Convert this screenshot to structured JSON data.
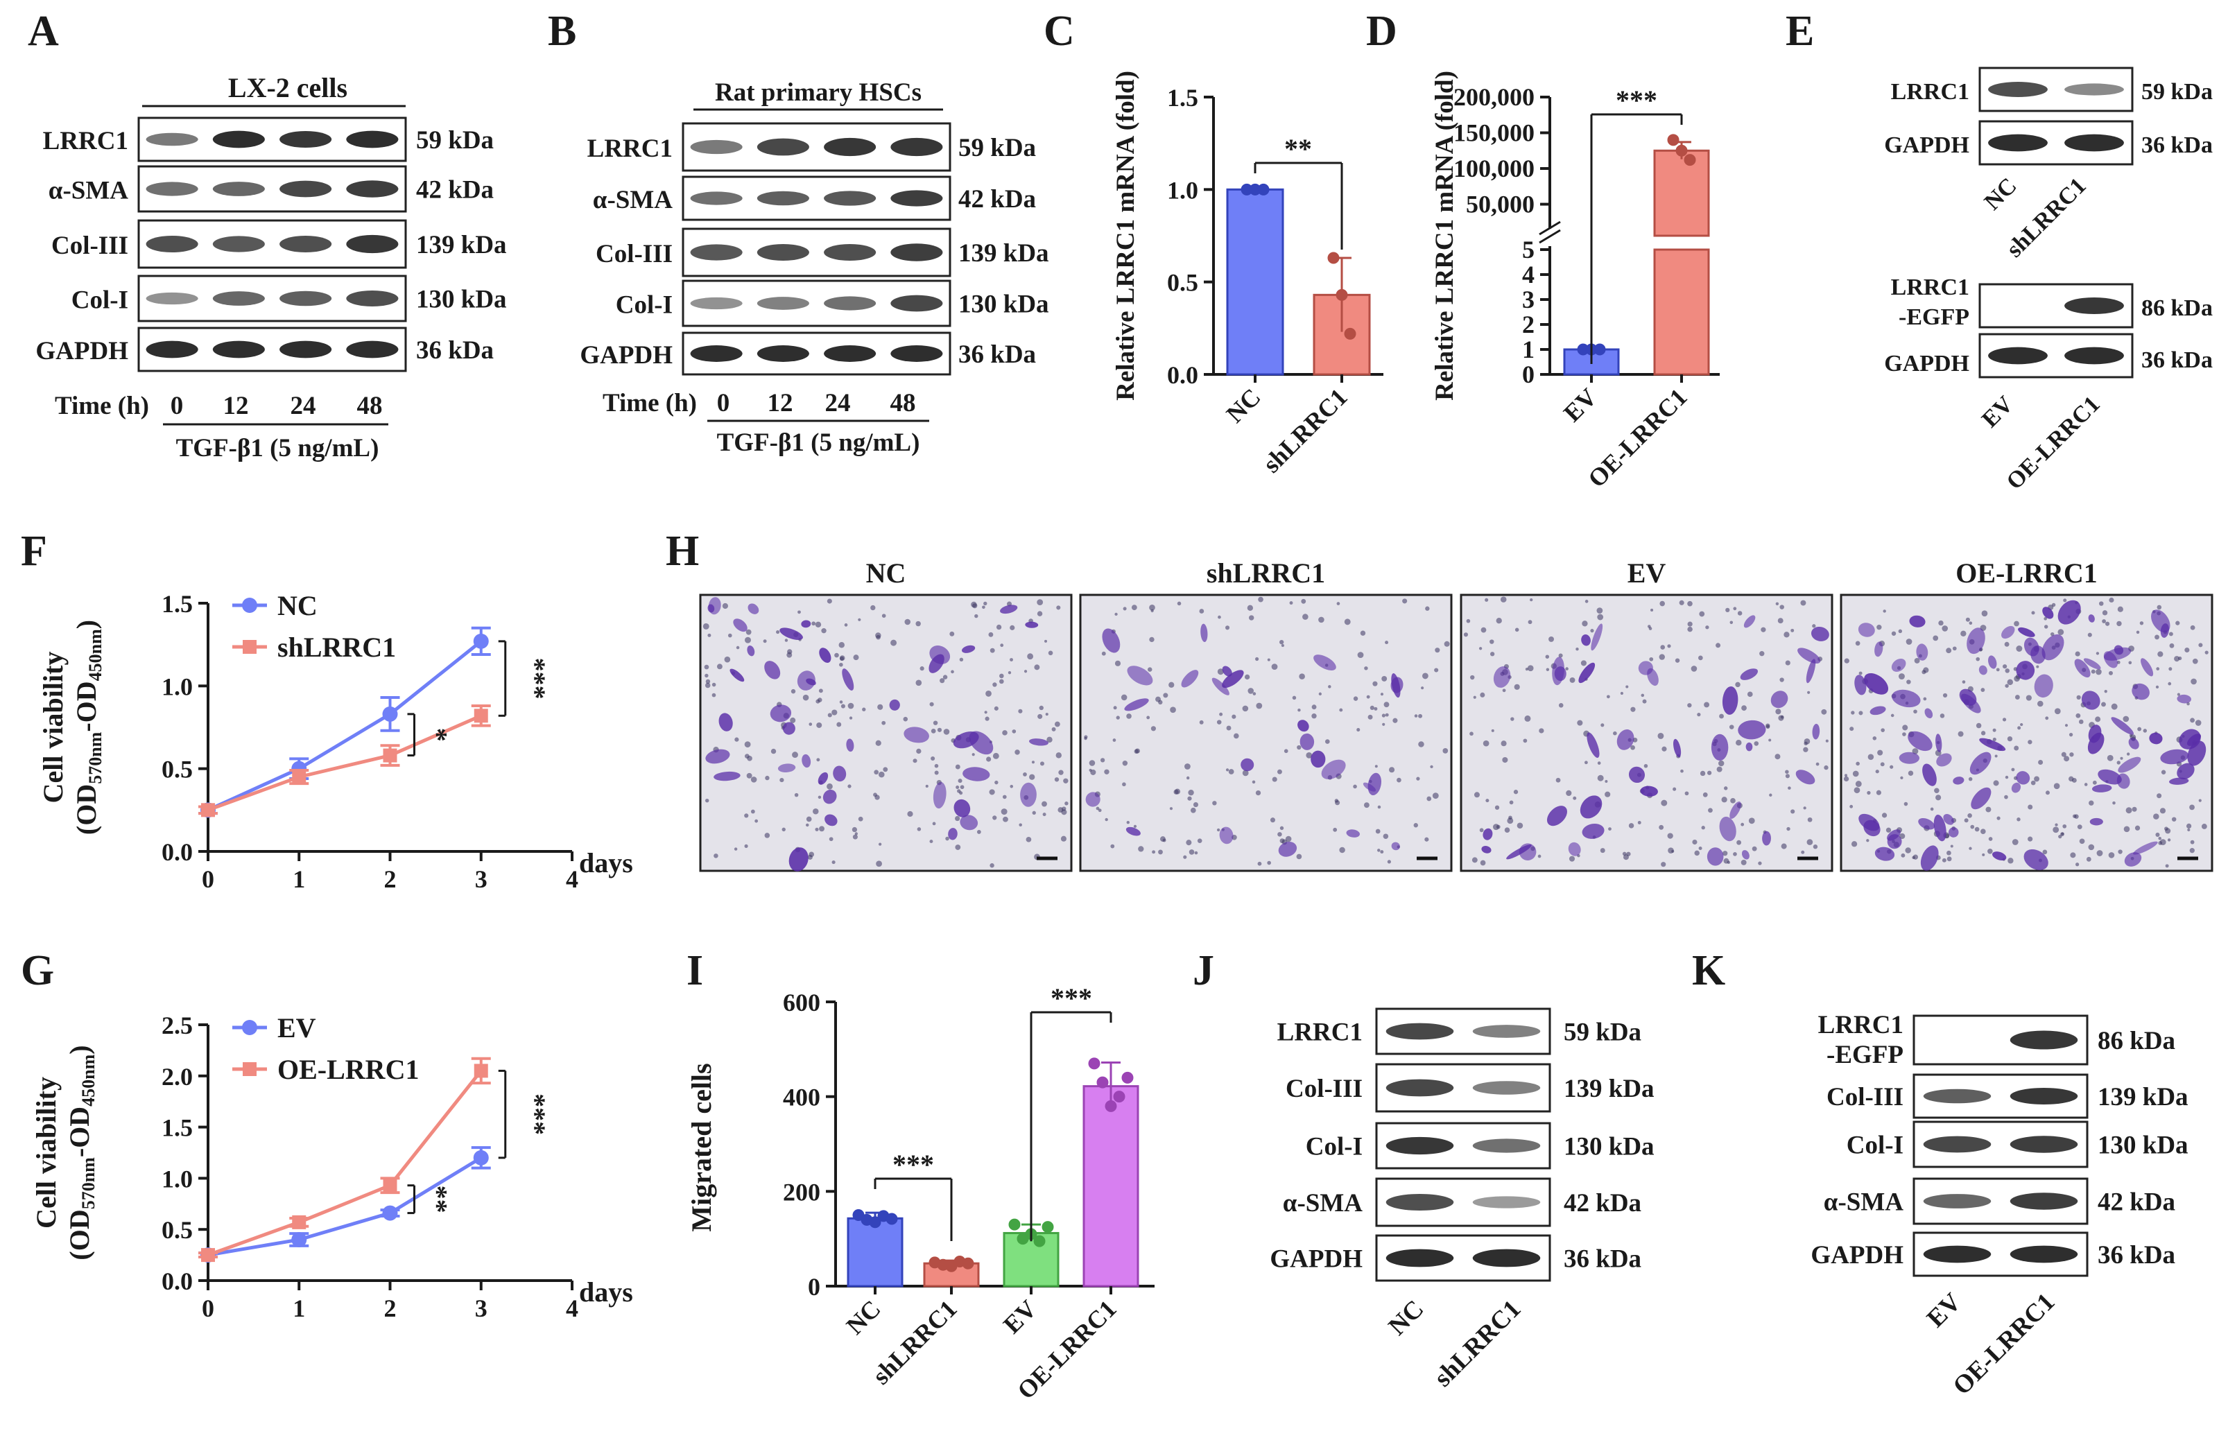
{
  "panels": {
    "A": {
      "label": "A",
      "title": "LX-2 cells",
      "rows": [
        {
          "name": "LRRC1",
          "kda": "59 kDa",
          "levels": [
            0.45,
            0.9,
            0.85,
            0.9
          ]
        },
        {
          "name": "α-SMA",
          "kda": "42 kDa",
          "levels": [
            0.5,
            0.55,
            0.75,
            0.8
          ]
        },
        {
          "name": "Col-III",
          "kda": "139 kDa",
          "levels": [
            0.7,
            0.65,
            0.7,
            0.85
          ]
        },
        {
          "name": "Col-I",
          "kda": "130 kDa",
          "levels": [
            0.3,
            0.55,
            0.6,
            0.7
          ]
        },
        {
          "name": "GAPDH",
          "kda": "36 kDa",
          "levels": [
            0.9,
            0.9,
            0.9,
            0.9
          ]
        }
      ],
      "time_label": "Time (h)",
      "times": [
        "0",
        "12",
        "24",
        "48"
      ],
      "treatment": "TGF-β1 (5 ng/mL)"
    },
    "B": {
      "label": "B",
      "title": "Rat primary HSCs",
      "rows": [
        {
          "name": "LRRC1",
          "kda": "59 kDa",
          "levels": [
            0.45,
            0.75,
            0.85,
            0.85
          ]
        },
        {
          "name": "α-SMA",
          "kda": "42 kDa",
          "levels": [
            0.5,
            0.6,
            0.65,
            0.8
          ]
        },
        {
          "name": "Col-III",
          "kda": "139 kDa",
          "levels": [
            0.65,
            0.7,
            0.7,
            0.8
          ]
        },
        {
          "name": "Col-I",
          "kda": "130 kDa",
          "levels": [
            0.3,
            0.4,
            0.5,
            0.75
          ]
        },
        {
          "name": "GAPDH",
          "kda": "36 kDa",
          "levels": [
            0.9,
            0.9,
            0.9,
            0.9
          ]
        }
      ],
      "time_label": "Time (h)",
      "times": [
        "0",
        "12",
        "24",
        "48"
      ],
      "treatment": "TGF-β1 (5 ng/mL)"
    },
    "C": {
      "label": "C"
    },
    "D": {
      "label": "D"
    },
    "E": {
      "label": "E",
      "blot1": {
        "rows": [
          {
            "name": "LRRC1",
            "kda": "59 kDa",
            "levels": [
              0.7,
              0.35
            ]
          },
          {
            "name": "GAPDH",
            "kda": "36 kDa",
            "levels": [
              0.9,
              0.9
            ]
          }
        ],
        "lanes": [
          "NC",
          "shLRRC1"
        ]
      },
      "blot2": {
        "rows": [
          {
            "name1": "LRRC1",
            "name2": "-EGFP",
            "kda": "86 kDa",
            "levels": [
              0.0,
              0.85
            ]
          },
          {
            "name": "GAPDH",
            "kda": "36 kDa",
            "levels": [
              0.9,
              0.9
            ]
          }
        ],
        "lanes": [
          "EV",
          "OE-LRRC1"
        ]
      }
    },
    "F": {
      "label": "F"
    },
    "G": {
      "label": "G"
    },
    "H": {
      "label": "H",
      "images": [
        {
          "title": "NC",
          "density": 0.45
        },
        {
          "title": "shLRRC1",
          "density": 0.2
        },
        {
          "title": "EV",
          "density": 0.4
        },
        {
          "title": "OE-LRRC1",
          "density": 0.95
        }
      ]
    },
    "I": {
      "label": "I"
    },
    "J": {
      "label": "J",
      "rows": [
        {
          "name": "LRRC1",
          "kda": "59 kDa",
          "levels": [
            0.75,
            0.4
          ]
        },
        {
          "name": "Col-III",
          "kda": "139 kDa",
          "levels": [
            0.75,
            0.4
          ]
        },
        {
          "name": "Col-I",
          "kda": "130 kDa",
          "levels": [
            0.85,
            0.5
          ]
        },
        {
          "name": "α-SMA",
          "kda": "42 kDa",
          "levels": [
            0.7,
            0.25
          ]
        },
        {
          "name": "GAPDH",
          "kda": "36 kDa",
          "levels": [
            0.9,
            0.9
          ]
        }
      ],
      "lanes": [
        "NC",
        "shLRRC1"
      ]
    },
    "K": {
      "label": "K",
      "rows": [
        {
          "name1": "LRRC1",
          "name2": "-EGFP",
          "kda": "86 kDa",
          "levels": [
            0.0,
            0.85
          ]
        },
        {
          "name": "Col-III",
          "kda": "139 kDa",
          "levels": [
            0.6,
            0.85
          ]
        },
        {
          "name": "Col-I",
          "kda": "130 kDa",
          "levels": [
            0.75,
            0.8
          ]
        },
        {
          "name": "α-SMA",
          "kda": "42 kDa",
          "levels": [
            0.55,
            0.8
          ]
        },
        {
          "name": "GAPDH",
          "kda": "36 kDa",
          "levels": [
            0.9,
            0.9
          ]
        }
      ],
      "lanes": [
        "EV",
        "OE-LRRC1"
      ]
    }
  },
  "chart_data": [
    {
      "id": "C",
      "type": "bar",
      "categories": [
        "NC",
        "shLRRC1"
      ],
      "values": [
        1.0,
        0.43
      ],
      "errors": [
        0.0,
        0.2
      ],
      "points": [
        [
          1.0,
          1.0,
          1.0
        ],
        [
          0.63,
          0.43,
          0.22
        ]
      ],
      "colors": [
        "#6f7ff7",
        "#f08a80"
      ],
      "ylabel": "Relative LRRC1 mRNA (fold)",
      "ylim": [
        0,
        1.5
      ],
      "yticks": [
        "0.0",
        "0.5",
        "1.0",
        "1.5"
      ],
      "significance": "**"
    },
    {
      "id": "D",
      "type": "bar",
      "categories": [
        "EV",
        "OE-LRRC1"
      ],
      "values": [
        1.0,
        125000
      ],
      "errors": [
        0.05,
        12000
      ],
      "points": [
        [
          1.0,
          1.0,
          1.0
        ],
        [
          140000,
          125000,
          112000
        ]
      ],
      "colors": [
        "#6f7ff7",
        "#f08a80"
      ],
      "ylabel": "Relative LRRC1 mRNA (fold)",
      "yticks_lower": [
        "0",
        "1",
        "2",
        "3",
        "4",
        "5"
      ],
      "yticks_upper": [
        "50,000",
        "100,000",
        "150,000",
        "200,000"
      ],
      "significance": "***"
    },
    {
      "id": "F",
      "type": "line",
      "x": [
        0,
        1,
        2,
        3
      ],
      "series": [
        {
          "name": "NC",
          "values": [
            0.25,
            0.5,
            0.83,
            1.27
          ],
          "errors": [
            0.02,
            0.06,
            0.1,
            0.08
          ],
          "color": "#6f7ff7"
        },
        {
          "name": "shLRRC1",
          "values": [
            0.25,
            0.45,
            0.58,
            0.82
          ],
          "errors": [
            0.02,
            0.04,
            0.06,
            0.06
          ],
          "color": "#f08a80"
        }
      ],
      "ylabel_main": "Cell viability",
      "ylabel_sub": [
        "(OD",
        "570nm",
        "-OD",
        "450nm",
        ")"
      ],
      "xlabel": "days",
      "xticks": [
        "0",
        "1",
        "2",
        "3",
        "4"
      ],
      "yticks": [
        "0.0",
        "0.5",
        "1.0",
        "1.5"
      ],
      "ylim": [
        0,
        1.5
      ],
      "xlim": [
        0,
        4
      ],
      "sig_day2": "*",
      "sig_day3": "***"
    },
    {
      "id": "G",
      "type": "line",
      "x": [
        0,
        1,
        2,
        3
      ],
      "series": [
        {
          "name": "EV",
          "values": [
            0.25,
            0.4,
            0.66,
            1.2
          ],
          "errors": [
            0.02,
            0.06,
            0.03,
            0.1
          ],
          "color": "#6f7ff7"
        },
        {
          "name": "OE-LRRC1",
          "values": [
            0.25,
            0.57,
            0.93,
            2.05
          ],
          "errors": [
            0.02,
            0.04,
            0.07,
            0.12
          ],
          "color": "#f08a80"
        }
      ],
      "ylabel_main": "Cell viability",
      "ylabel_sub": [
        "(OD",
        "570nm",
        "-OD",
        "450nm",
        ")"
      ],
      "xlabel": "days",
      "xticks": [
        "0",
        "1",
        "2",
        "3",
        "4"
      ],
      "yticks": [
        "0.0",
        "0.5",
        "1.0",
        "1.5",
        "2.0",
        "2.5"
      ],
      "ylim": [
        0,
        2.5
      ],
      "xlim": [
        0,
        4
      ],
      "sig_day2": "**",
      "sig_day3": "***"
    },
    {
      "id": "I",
      "type": "bar",
      "categories": [
        "NC",
        "shLRRC1",
        "EV",
        "OE-LRRC1"
      ],
      "values": [
        143,
        48,
        112,
        422
      ],
      "errors": [
        12,
        6,
        18,
        50
      ],
      "points": [
        [
          150,
          140,
          135,
          148,
          142
        ],
        [
          50,
          45,
          42,
          52,
          48
        ],
        [
          130,
          100,
          110,
          95,
          125
        ],
        [
          470,
          430,
          380,
          400,
          440
        ]
      ],
      "colors": [
        "#6f7ff7",
        "#f08a80",
        "#7fe07f",
        "#d77ff0"
      ],
      "ylabel": "Migrated cells",
      "ylim": [
        0,
        600
      ],
      "yticks": [
        "0",
        "200",
        "400",
        "600"
      ],
      "sig1": "***",
      "sig2": "***"
    }
  ]
}
